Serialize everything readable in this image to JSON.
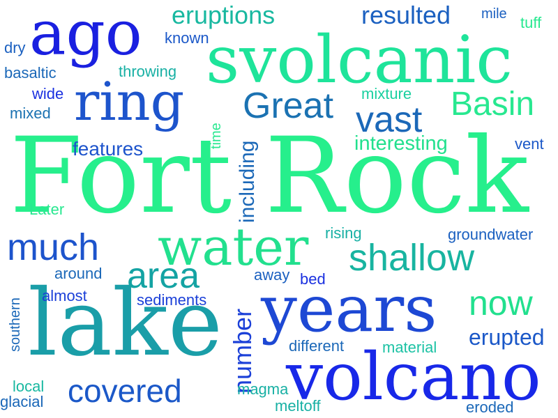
{
  "words": {
    "fort_rock": "Fort Rock",
    "svolcanic": "svolcanic",
    "ago": "ago",
    "ring": "ring",
    "great": "Great",
    "basin": "Basin",
    "vast": "vast",
    "water": "water",
    "much": "much",
    "shallow": "shallow",
    "lake": "lake",
    "years": "years",
    "now": "now",
    "volcano": "volcano",
    "covered": "covered",
    "area": "area",
    "number": "number",
    "including": "including",
    "erupted": "erupted",
    "eruptions": "eruptions",
    "resulted": "resulted",
    "mile": "mile",
    "tuff": "tuff",
    "known": "known",
    "dry": "dry",
    "basaltic": "basaltic",
    "throwing": "throwing",
    "wide": "wide",
    "mixture": "mixture",
    "mixed": "mixed",
    "time": "time",
    "features": "features",
    "interesting": "interesting",
    "vent": "vent",
    "later": "Later",
    "rising": "rising",
    "groundwater": "groundwater",
    "around": "around",
    "away": "away",
    "bed": "bed",
    "almost": "almost",
    "sediments": "sediments",
    "southern": "southern",
    "different": "different",
    "material": "material",
    "local": "local",
    "glacial": "glacial",
    "magma": "magma",
    "meltoff": "meltoff",
    "eroded": "eroded"
  },
  "colors": {
    "blue": "#1f3fe0",
    "royal": "#1d52cc",
    "steel": "#1d6ab4",
    "teal": "#14a3a3",
    "aqua": "#1cbfa8",
    "mint": "#1ee196",
    "spring": "#22f08a"
  }
}
